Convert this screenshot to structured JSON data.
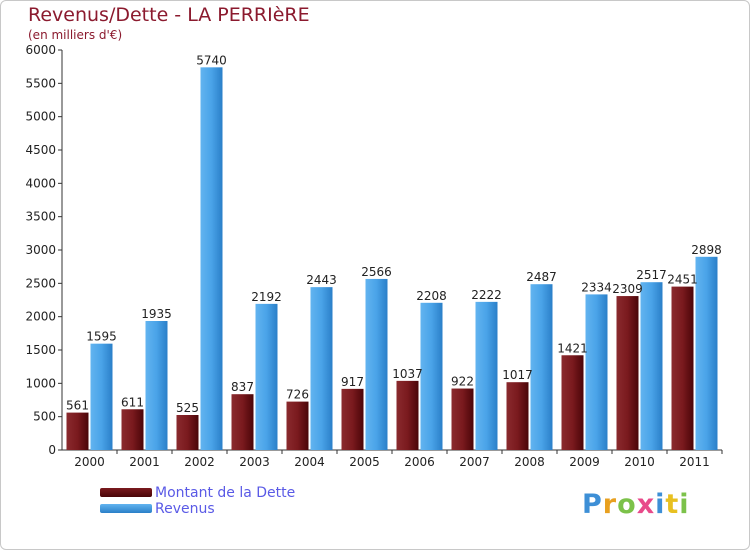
{
  "chart_data": {
    "type": "bar",
    "title": "Revenus/Dette - LA PERRIèRE",
    "subtitle": "(en milliers d'€)",
    "categories": [
      "2000",
      "2001",
      "2002",
      "2003",
      "2004",
      "2005",
      "2006",
      "2007",
      "2008",
      "2009",
      "2010",
      "2011"
    ],
    "series": [
      {
        "name": "Montant de la Dette",
        "color": "#6b0f12",
        "values": [
          561,
          611,
          525,
          837,
          726,
          917,
          1037,
          922,
          1017,
          1421,
          2309,
          2451
        ]
      },
      {
        "name": "Revenus",
        "color": "#4aa3e8",
        "values": [
          1595,
          1935,
          5740,
          2192,
          2443,
          2566,
          2208,
          2222,
          2487,
          2334,
          2517,
          2898
        ]
      }
    ],
    "data_labels": {
      "Montant de la Dette": [
        "561",
        "611",
        "525",
        "837",
        "726",
        "917",
        "1037",
        "922",
        "1017",
        "1421",
        "2309",
        "2451"
      ],
      "Revenus": [
        "1595",
        "1935",
        "5740",
        "2192",
        "2443",
        "2566",
        "2208",
        "2222",
        "2487",
        "2334",
        "2517",
        "2898"
      ]
    },
    "ylim": [
      0,
      6000
    ],
    "yticks": [
      0,
      500,
      1000,
      1500,
      2000,
      2500,
      3000,
      3500,
      4000,
      4500,
      5000,
      5500,
      6000
    ],
    "grid": false,
    "legend_position": "bottom-left"
  },
  "logo": {
    "letters": [
      "P",
      "r",
      "o",
      "x",
      "i",
      "t",
      "i"
    ],
    "colors": [
      "#3d8fd6",
      "#e8a020",
      "#7cc24a",
      "#e84a8a",
      "#3d8fd6",
      "#e8c020",
      "#7cc24a"
    ]
  }
}
